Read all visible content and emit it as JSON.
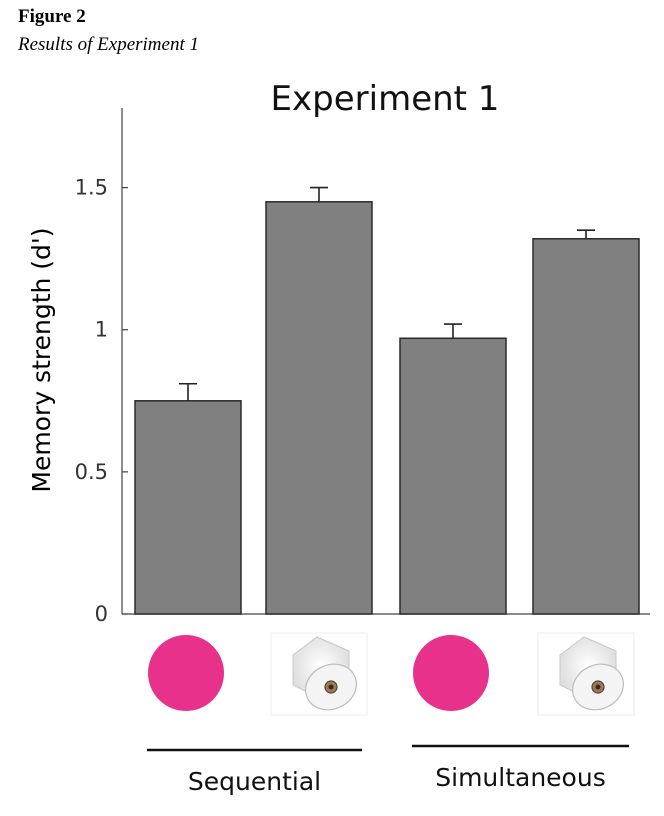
{
  "figure": {
    "label": "Figure 2",
    "caption": "Results of Experiment 1"
  },
  "chart_data": {
    "type": "bar",
    "title": "Experiment 1",
    "xlabel": "",
    "ylabel": "Memory strength (d')",
    "ylim": [
      0,
      1.78
    ],
    "yticks": [
      0,
      0.5,
      1,
      1.5
    ],
    "ytick_labels": [
      "0",
      "0.5",
      "1",
      "1.5"
    ],
    "categories": [
      "pink-circle",
      "paper-roll",
      "pink-circle",
      "paper-roll"
    ],
    "category_icons": [
      "pink-circle-icon",
      "paper-roll-icon",
      "pink-circle-icon",
      "paper-roll-icon"
    ],
    "values": [
      0.75,
      1.45,
      0.97,
      1.32
    ],
    "errors": [
      0.06,
      0.05,
      0.05,
      0.03
    ],
    "groups": [
      {
        "label": "Sequential",
        "members": [
          0,
          1
        ]
      },
      {
        "label": "Simultaneous",
        "members": [
          2,
          3
        ]
      }
    ],
    "grid": false,
    "colors": {
      "bar": "#808080",
      "bar_edge": "#2a2a2a",
      "circle": "#e8318a"
    }
  }
}
